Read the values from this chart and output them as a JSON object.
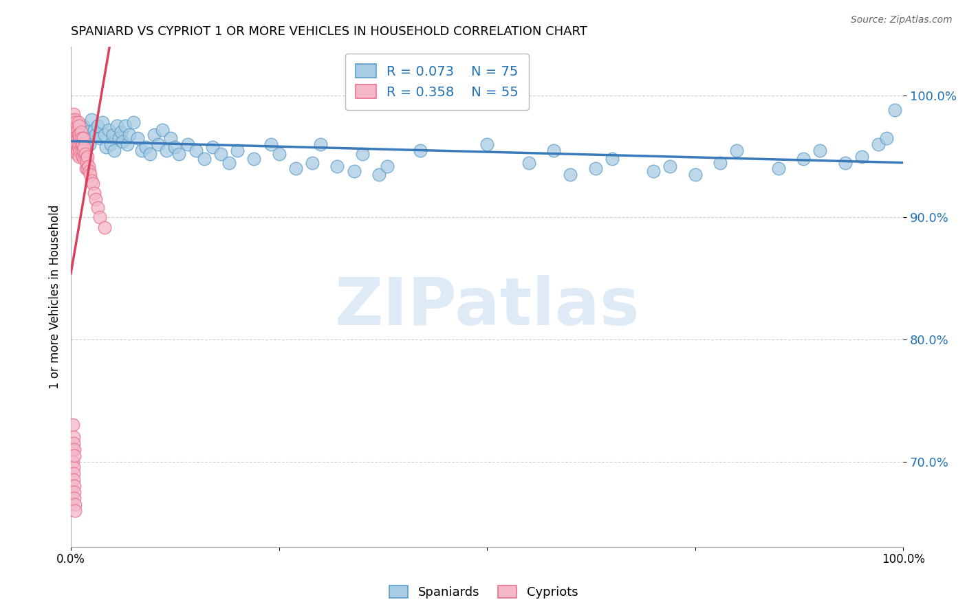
{
  "title": "SPANIARD VS CYPRIOT 1 OR MORE VEHICLES IN HOUSEHOLD CORRELATION CHART",
  "source": "Source: ZipAtlas.com",
  "ylabel": "1 or more Vehicles in Household",
  "xlim": [
    0.0,
    1.0
  ],
  "ylim": [
    0.63,
    1.04
  ],
  "yticks": [
    0.7,
    0.8,
    0.9,
    1.0
  ],
  "ytick_labels": [
    "70.0%",
    "80.0%",
    "90.0%",
    "100.0%"
  ],
  "xticks": [
    0.0,
    0.25,
    0.5,
    0.75,
    1.0
  ],
  "xtick_labels": [
    "0.0%",
    "",
    "",
    "",
    "100.0%"
  ],
  "spaniard_R": 0.073,
  "spaniard_N": 75,
  "cypriot_R": 0.358,
  "cypriot_N": 55,
  "blue_color": "#a8cce4",
  "blue_edge_color": "#5b9dc9",
  "blue_line_color": "#3a7aba",
  "pink_color": "#f4b8c8",
  "pink_edge_color": "#e8708a",
  "pink_line_color": "#d9415e",
  "legend_text_color": "#2171b5",
  "watermark_color": "#c8dff0",
  "spaniard_x": [
    0.005,
    0.01,
    0.015,
    0.018,
    0.02,
    0.022,
    0.025,
    0.028,
    0.03,
    0.032,
    0.035,
    0.038,
    0.04,
    0.042,
    0.045,
    0.048,
    0.05,
    0.052,
    0.055,
    0.058,
    0.06,
    0.062,
    0.065,
    0.068,
    0.07,
    0.075,
    0.08,
    0.085,
    0.09,
    0.095,
    0.1,
    0.105,
    0.11,
    0.115,
    0.12,
    0.125,
    0.13,
    0.14,
    0.15,
    0.16,
    0.17,
    0.18,
    0.19,
    0.2,
    0.22,
    0.24,
    0.25,
    0.27,
    0.29,
    0.3,
    0.32,
    0.34,
    0.35,
    0.37,
    0.38,
    0.42,
    0.5,
    0.55,
    0.58,
    0.6,
    0.63,
    0.65,
    0.7,
    0.72,
    0.75,
    0.78,
    0.8,
    0.85,
    0.88,
    0.9,
    0.93,
    0.95,
    0.97,
    0.98,
    0.99
  ],
  "spaniard_y": [
    0.955,
    0.96,
    0.975,
    0.965,
    0.97,
    0.96,
    0.98,
    0.972,
    0.968,
    0.975,
    0.965,
    0.978,
    0.968,
    0.958,
    0.972,
    0.96,
    0.968,
    0.955,
    0.975,
    0.965,
    0.97,
    0.962,
    0.975,
    0.96,
    0.968,
    0.978,
    0.965,
    0.955,
    0.958,
    0.952,
    0.968,
    0.96,
    0.972,
    0.955,
    0.965,
    0.958,
    0.952,
    0.96,
    0.955,
    0.948,
    0.958,
    0.952,
    0.945,
    0.955,
    0.948,
    0.96,
    0.952,
    0.94,
    0.945,
    0.96,
    0.942,
    0.938,
    0.952,
    0.935,
    0.942,
    0.955,
    0.96,
    0.945,
    0.955,
    0.935,
    0.94,
    0.948,
    0.938,
    0.942,
    0.935,
    0.945,
    0.955,
    0.94,
    0.948,
    0.955,
    0.945,
    0.95,
    0.96,
    0.965,
    0.988
  ],
  "cypriot_x": [
    0.002,
    0.003,
    0.003,
    0.004,
    0.004,
    0.004,
    0.005,
    0.005,
    0.005,
    0.005,
    0.006,
    0.006,
    0.006,
    0.007,
    0.007,
    0.007,
    0.007,
    0.008,
    0.008,
    0.008,
    0.009,
    0.009,
    0.009,
    0.01,
    0.01,
    0.01,
    0.01,
    0.011,
    0.011,
    0.012,
    0.012,
    0.013,
    0.013,
    0.014,
    0.014,
    0.015,
    0.015,
    0.016,
    0.016,
    0.017,
    0.018,
    0.018,
    0.019,
    0.02,
    0.02,
    0.021,
    0.022,
    0.023,
    0.025,
    0.026,
    0.028,
    0.03,
    0.032,
    0.035,
    0.04
  ],
  "cypriot_y": [
    0.98,
    0.975,
    0.985,
    0.978,
    0.97,
    0.965,
    0.98,
    0.972,
    0.965,
    0.958,
    0.978,
    0.97,
    0.96,
    0.975,
    0.968,
    0.96,
    0.952,
    0.972,
    0.965,
    0.955,
    0.978,
    0.968,
    0.958,
    0.975,
    0.968,
    0.96,
    0.95,
    0.965,
    0.955,
    0.97,
    0.96,
    0.965,
    0.955,
    0.96,
    0.95,
    0.965,
    0.955,
    0.958,
    0.948,
    0.952,
    0.948,
    0.94,
    0.945,
    0.95,
    0.94,
    0.942,
    0.938,
    0.935,
    0.93,
    0.928,
    0.92,
    0.915,
    0.908,
    0.9,
    0.892
  ],
  "cypriot_y_low": [
    0.71,
    0.7,
    0.695,
    0.69,
    0.685,
    0.68,
    0.675,
    0.67,
    0.665,
    0.66,
    0.73,
    0.72,
    0.715,
    0.71,
    0.705
  ],
  "cypriot_x_low": [
    0.002,
    0.002,
    0.003,
    0.003,
    0.003,
    0.004,
    0.004,
    0.004,
    0.005,
    0.005,
    0.002,
    0.003,
    0.003,
    0.004,
    0.004
  ]
}
